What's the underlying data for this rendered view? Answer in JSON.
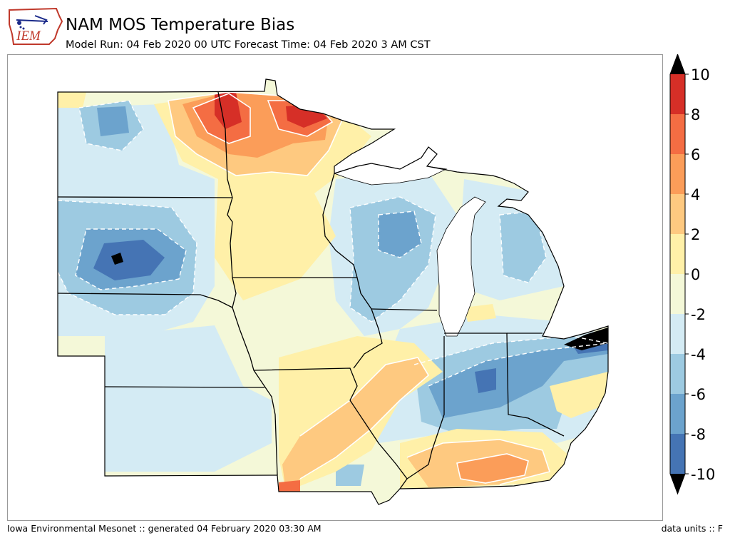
{
  "header": {
    "title": "NAM MOS Temperature Bias",
    "subtitle": "Model Run: 04 Feb 2020 00 UTC Forecast Time: 04 Feb 2020 3 AM CST",
    "logo_text": "IEM"
  },
  "footer": {
    "left": "Iowa Environmental Mesonet :: generated 04 February 2020 03:30 AM",
    "right": "data units :: F"
  },
  "colorbar": {
    "ticks": [
      "10",
      "8",
      "6",
      "4",
      "2",
      "0",
      "-2",
      "-4",
      "-6",
      "-8",
      "-10"
    ],
    "bins": [
      {
        "from": 8,
        "to": 10,
        "color": "#d62f27"
      },
      {
        "from": 6,
        "to": 8,
        "color": "#f46d43"
      },
      {
        "from": 4,
        "to": 6,
        "color": "#fb9d59"
      },
      {
        "from": 2,
        "to": 4,
        "color": "#fec980"
      },
      {
        "from": 0,
        "to": 2,
        "color": "#fff0a8"
      },
      {
        "from": -2,
        "to": 0,
        "color": "#f4f8d8"
      },
      {
        "from": -4,
        "to": -2,
        "color": "#d4ebf4"
      },
      {
        "from": -6,
        "to": -4,
        "color": "#9dcae1"
      },
      {
        "from": -8,
        "to": -6,
        "color": "#6ca3cd"
      },
      {
        "from": -10,
        "to": -8,
        "color": "#4574b4"
      }
    ],
    "over_color": "#000000",
    "under_color": "#000000"
  }
}
